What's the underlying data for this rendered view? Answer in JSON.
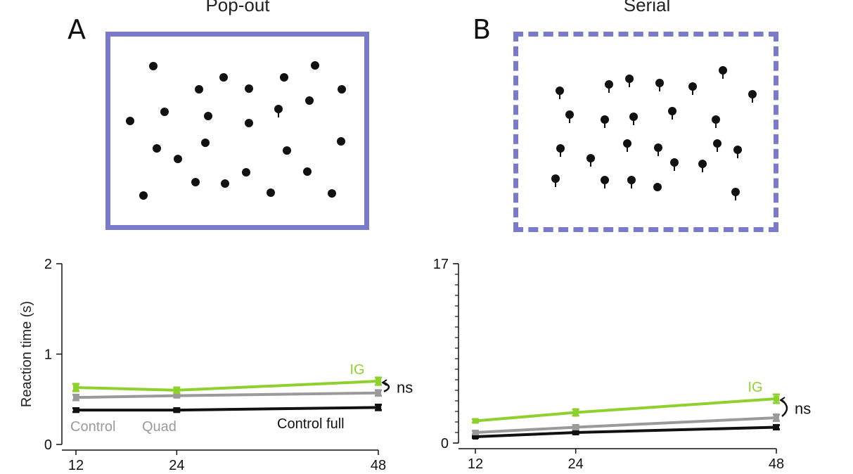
{
  "panels": {
    "a": {
      "letter": "A",
      "title": "Pop-out",
      "frame_color": "#7a7acc"
    },
    "b": {
      "letter": "B",
      "title": "Serial",
      "frame_color": "#7a7acc"
    }
  },
  "colors": {
    "ig": "#8ed12d",
    "control_quad": "#9a9a9a",
    "control_full": "#111111",
    "annotation": "#111111"
  },
  "chart_data": [
    {
      "type": "line",
      "ylabel": "Reaction time (s)",
      "x": [
        12,
        24,
        48
      ],
      "x_ticks": [
        "12",
        "24",
        "48"
      ],
      "ylim": [
        0,
        2
      ],
      "y_ticks": [
        "0",
        "1",
        "2"
      ],
      "series": [
        {
          "name": "IG",
          "values": [
            0.63,
            0.6,
            0.7
          ],
          "errors": [
            0.04,
            0.03,
            0.04
          ]
        },
        {
          "name": "Control Quad",
          "values": [
            0.52,
            0.54,
            0.57
          ],
          "errors": [
            0.03,
            0.02,
            0.03
          ]
        },
        {
          "name": "Control full",
          "values": [
            0.38,
            0.38,
            0.41
          ],
          "errors": [
            0.02,
            0.02,
            0.03
          ]
        }
      ],
      "labels": {
        "ig": "IG",
        "control": "Control",
        "quad": "Quad",
        "control_full": "Control full",
        "ns": "ns"
      }
    },
    {
      "type": "line",
      "ylabel": "",
      "x": [
        12,
        24,
        48
      ],
      "x_ticks": [
        "12",
        "24",
        "48"
      ],
      "ylim": [
        0,
        17
      ],
      "y_ticks": [
        "0",
        "17"
      ],
      "series": [
        {
          "name": "IG",
          "values": [
            2.1,
            2.9,
            4.2
          ],
          "errors": [
            0.15,
            0.3,
            0.4
          ]
        },
        {
          "name": "Control Quad",
          "values": [
            1.0,
            1.5,
            2.4
          ],
          "errors": [
            0.15,
            0.2,
            0.3
          ]
        },
        {
          "name": "Control full",
          "values": [
            0.6,
            1.0,
            1.5
          ],
          "errors": [
            0.1,
            0.15,
            0.2
          ]
        }
      ],
      "labels": {
        "ig": "IG",
        "ns": "ns"
      }
    }
  ]
}
